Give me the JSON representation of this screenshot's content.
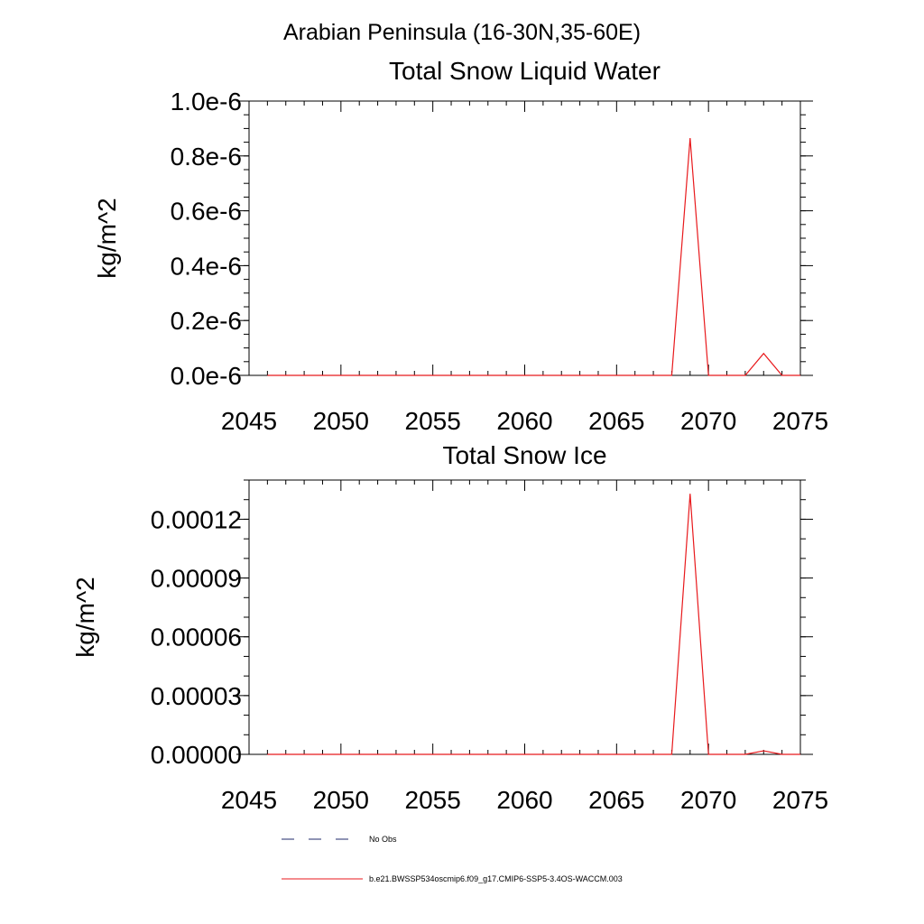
{
  "figure": {
    "main_title": "Arabian Peninsula (16-30N,35-60E)"
  },
  "chart_data": [
    {
      "type": "line",
      "title": "Total Snow Liquid Water",
      "xlabel": "",
      "ylabel": "kg/m^2",
      "xlim": [
        2045,
        2075
      ],
      "ylim": [
        0,
        1e-06
      ],
      "x_ticks": [
        2045,
        2050,
        2055,
        2060,
        2065,
        2070,
        2075
      ],
      "x_tick_labels": [
        "2045",
        "2050",
        "2055",
        "2060",
        "2065",
        "2070",
        "2075"
      ],
      "y_ticks": [
        0,
        2e-07,
        4e-07,
        6e-07,
        8e-07,
        1e-06
      ],
      "y_tick_labels": [
        "0.0e-6",
        "0.2e-6",
        "0.4e-6",
        "0.6e-6",
        "0.8e-6",
        "1.0e-6"
      ],
      "y_minor_step": 5e-08,
      "x_minor_step": 1,
      "grid": false,
      "series": [
        {
          "name": "b.e21.BWSSP534oscmip6.f09_g17.CMIP6-SSP5-3.4OS-WACCM.003",
          "color": "#e8191c",
          "x": [
            2046,
            2047,
            2048,
            2049,
            2050,
            2051,
            2052,
            2053,
            2054,
            2055,
            2056,
            2057,
            2058,
            2059,
            2060,
            2061,
            2062,
            2063,
            2064,
            2065,
            2066,
            2067,
            2068,
            2069,
            2070,
            2071,
            2072,
            2073,
            2074,
            2075
          ],
          "values": [
            0,
            0,
            0,
            0,
            0,
            0,
            0,
            0,
            0,
            0,
            0,
            0,
            0,
            0,
            0,
            0,
            0,
            0,
            0,
            0,
            0,
            0,
            0,
            8.65e-07,
            0,
            0,
            0,
            8e-08,
            0,
            0
          ]
        }
      ]
    },
    {
      "type": "line",
      "title": "Total Snow Ice",
      "xlabel": "",
      "ylabel": "kg/m^2",
      "xlim": [
        2045,
        2075
      ],
      "ylim": [
        0,
        0.00014
      ],
      "x_ticks": [
        2045,
        2050,
        2055,
        2060,
        2065,
        2070,
        2075
      ],
      "x_tick_labels": [
        "2045",
        "2050",
        "2055",
        "2060",
        "2065",
        "2070",
        "2075"
      ],
      "y_ticks": [
        0,
        3e-05,
        6e-05,
        9e-05,
        0.00012
      ],
      "y_tick_labels": [
        "0.00000",
        "0.00003",
        "0.00006",
        "0.00009",
        "0.00012"
      ],
      "y_minor_step": 1e-05,
      "x_minor_step": 1,
      "grid": false,
      "series": [
        {
          "name": "b.e21.BWSSP534oscmip6.f09_g17.CMIP6-SSP5-3.4OS-WACCM.003",
          "color": "#e8191c",
          "x": [
            2046,
            2047,
            2048,
            2049,
            2050,
            2051,
            2052,
            2053,
            2054,
            2055,
            2056,
            2057,
            2058,
            2059,
            2060,
            2061,
            2062,
            2063,
            2064,
            2065,
            2066,
            2067,
            2068,
            2069,
            2070,
            2071,
            2072,
            2073,
            2074,
            2075
          ],
          "values": [
            0,
            0,
            0,
            0,
            0,
            0,
            0,
            0,
            0,
            0,
            0,
            0,
            0,
            0,
            0,
            0,
            0,
            0,
            0,
            0,
            0,
            0,
            0,
            0.000133,
            0,
            0,
            0,
            1.8e-06,
            0,
            0
          ]
        }
      ]
    }
  ],
  "legend": {
    "items": [
      {
        "label": "No Obs",
        "color": "#1f2a6b",
        "style": "dashed"
      },
      {
        "label": "b.e21.BWSSP534oscmip6.f09_g17.CMIP6-SSP5-3.4OS-WACCM.003",
        "color": "#e8191c",
        "style": "solid"
      }
    ]
  }
}
